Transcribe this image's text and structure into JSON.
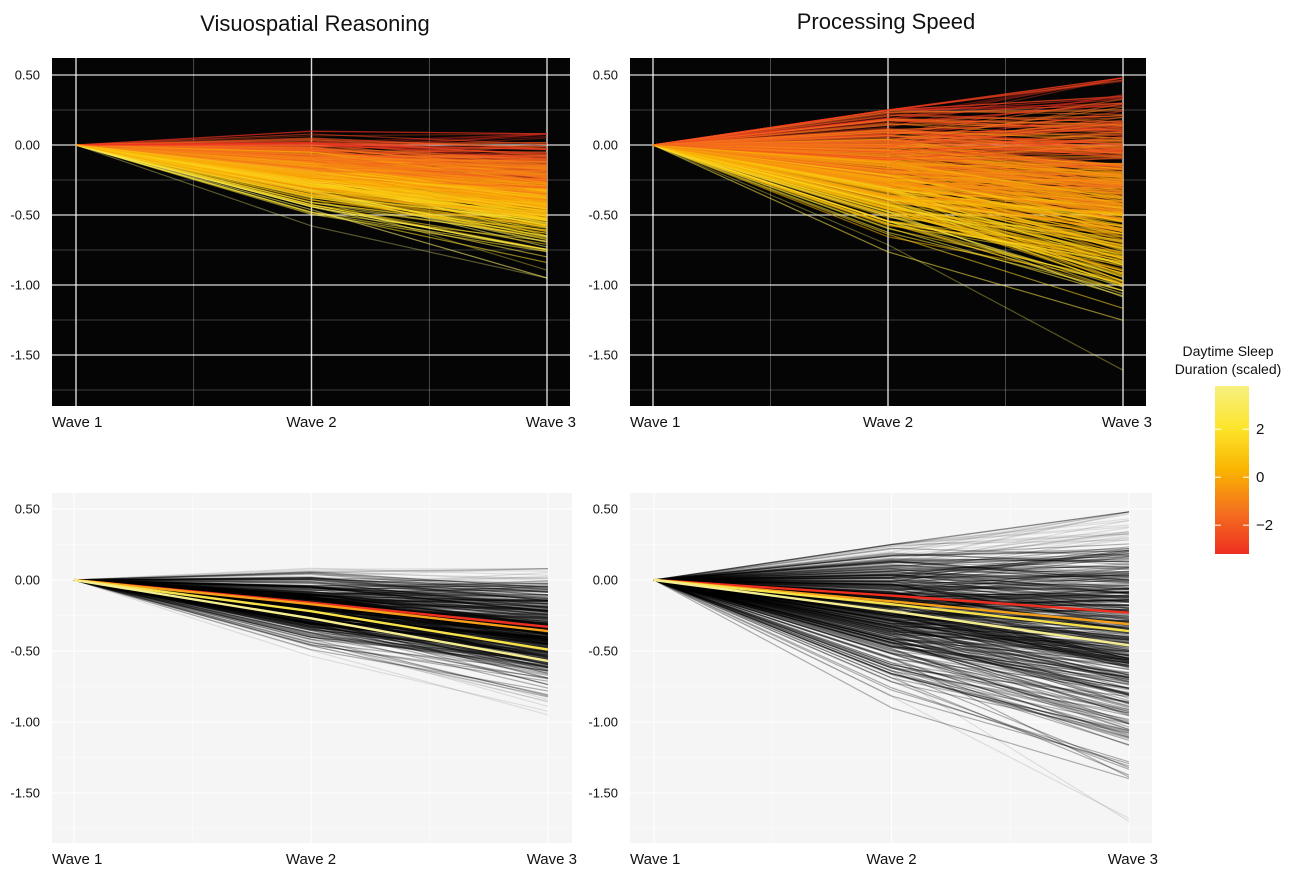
{
  "chart_data": [
    {
      "type": "line",
      "panel": "top-left",
      "title": "Visuospatial Reasoning",
      "theme": "dark",
      "x": [
        "Wave 1",
        "Wave 2",
        "Wave 3"
      ],
      "y_ticks": [
        "0.50",
        "0.00",
        "-0.50",
        "-1.00",
        "-1.50"
      ],
      "y_tick_values": [
        0.5,
        0,
        -0.5,
        -1.0,
        -1.5
      ],
      "ylim": [
        -1.85,
        0.62
      ],
      "grid": true,
      "color_by": "Daytime Sleep Duration (scaled)",
      "wave2_range": [
        -0.6,
        0.1
      ],
      "wave3_range": [
        -0.95,
        0.08
      ],
      "series": []
    },
    {
      "type": "line",
      "panel": "top-right",
      "title": "Processing Speed",
      "theme": "dark",
      "x": [
        "Wave 1",
        "Wave 2",
        "Wave 3"
      ],
      "y_ticks": [
        "0.50",
        "0.00",
        "-0.50",
        "-1.00",
        "-1.50"
      ],
      "y_tick_values": [
        0.5,
        0,
        -0.5,
        -1.0,
        -1.5
      ],
      "ylim": [
        -1.85,
        0.62
      ],
      "grid": true,
      "color_by": "Daytime Sleep Duration (scaled)",
      "wave2_range": [
        -0.9,
        0.25
      ],
      "wave3_range": [
        -1.7,
        0.48
      ],
      "series": []
    },
    {
      "type": "line",
      "panel": "bottom-left",
      "title": "",
      "theme": "light",
      "x": [
        "Wave 1",
        "Wave 2",
        "Wave 3"
      ],
      "y_ticks": [
        "0.50",
        "0.00",
        "-0.50",
        "-1.00",
        "-1.50"
      ],
      "y_tick_values": [
        0.5,
        0,
        -0.5,
        -1.0,
        -1.5
      ],
      "ylim": [
        -1.85,
        0.62
      ],
      "grid": true,
      "wave2_range": [
        -0.6,
        0.1
      ],
      "wave3_range": [
        -0.95,
        0.08
      ],
      "series": [
        {
          "values": [
            0,
            -0.16,
            -0.33
          ],
          "color": "#ee2f20"
        },
        {
          "values": [
            0,
            -0.17,
            -0.36
          ],
          "color": "#f6a01a"
        },
        {
          "values": [
            0,
            -0.22,
            -0.49
          ],
          "color": "#f7e24a"
        },
        {
          "values": [
            0,
            -0.27,
            -0.57
          ],
          "color": "#f5ee90"
        }
      ]
    },
    {
      "type": "line",
      "panel": "bottom-right",
      "title": "",
      "theme": "light",
      "x": [
        "Wave 1",
        "Wave 2",
        "Wave 3"
      ],
      "y_ticks": [
        "0.50",
        "0.00",
        "-0.50",
        "-1.00",
        "-1.50"
      ],
      "y_tick_values": [
        0.5,
        0,
        -0.5,
        -1.0,
        -1.5
      ],
      "ylim": [
        -1.85,
        0.62
      ],
      "grid": true,
      "wave2_range": [
        -0.9,
        0.25
      ],
      "wave3_range": [
        -1.7,
        0.48
      ],
      "series": [
        {
          "values": [
            0,
            -0.11,
            -0.23
          ],
          "color": "#ee2f20"
        },
        {
          "values": [
            0,
            -0.15,
            -0.31
          ],
          "color": "#f6a01a"
        },
        {
          "values": [
            0,
            -0.17,
            -0.36
          ],
          "color": "#f7e24a"
        },
        {
          "values": [
            0,
            -0.22,
            -0.46
          ],
          "color": "#f5ee90"
        }
      ]
    }
  ],
  "legend": {
    "title_line1": "Daytime Sleep",
    "title_line2": "Duration (scaled)",
    "ticks": [
      "2",
      "0",
      "−2"
    ],
    "tick_values": [
      2,
      0,
      -2
    ],
    "range": [
      -3.2,
      3.8
    ],
    "gradient": [
      "#ee2f20",
      "#f4701f",
      "#f9b400",
      "#fde52c",
      "#f7f080"
    ]
  },
  "colors": {
    "dark_bg": "#050505",
    "light_bg": "#f4f5f4",
    "grid_dark": "#ffffff",
    "grid_light": "#ffffff",
    "gray_line": "#000000"
  }
}
